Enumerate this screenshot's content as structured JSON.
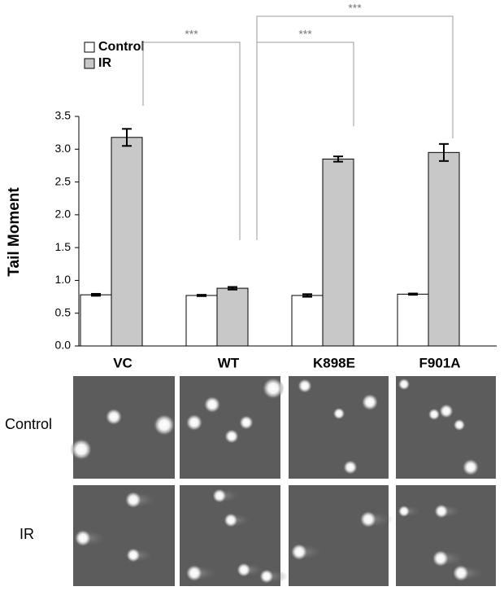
{
  "chart_data": {
    "type": "bar",
    "y_label": "Tail Moment",
    "categories": [
      "VC",
      "WT",
      "K898E",
      "F901A"
    ],
    "series": [
      {
        "name": "Control",
        "color": "#ffffff",
        "values": [
          0.78,
          0.77,
          0.77,
          0.79
        ],
        "errors": [
          0.015,
          0.01,
          0.02,
          0.01
        ]
      },
      {
        "name": "IR",
        "color": "#c8c8c8",
        "values": [
          3.18,
          0.88,
          2.85,
          2.95
        ],
        "errors": [
          0.13,
          0.02,
          0.04,
          0.13
        ]
      }
    ],
    "ylim": [
      0,
      3.5
    ],
    "yticks": [
      {
        "value": 0,
        "label": "0.0"
      },
      0.5,
      {
        "value": 1,
        "label": "1.0"
      },
      1.5,
      {
        "value": 2,
        "label": "2.0"
      },
      2.5,
      {
        "value": 3,
        "label": "3.0"
      },
      3.5
    ],
    "legend": "top-left",
    "annotations": [
      "***",
      "***",
      "***"
    ]
  }
}
